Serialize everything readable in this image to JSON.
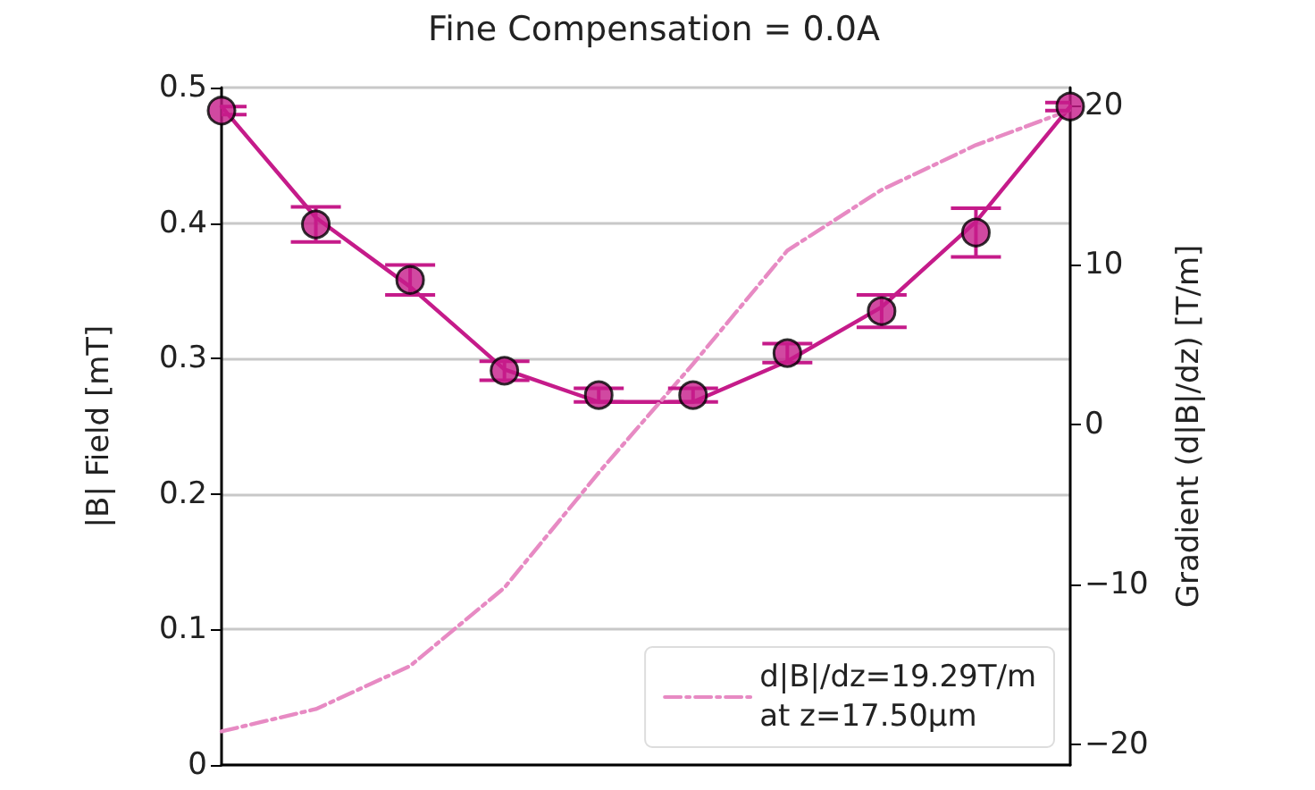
{
  "chart_data": {
    "type": "scatter",
    "title": "Fine Compensation = 0.0A",
    "ylabel": "|B| Field [mT]",
    "y2label": "Gradient (d|B|/dz) [T/m]",
    "categories": [
      null,
      null,
      null,
      null,
      null,
      null,
      null,
      null,
      null,
      null
    ],
    "ylim": [
      0,
      0.5
    ],
    "yticks": [
      0,
      0.1,
      0.2,
      0.3,
      0.4,
      0.5
    ],
    "y2lim": [
      -21.3,
      21.1
    ],
    "y2ticks": [
      {
        "value": -20,
        "label": "−20"
      },
      {
        "value": -10,
        "label": "−10"
      },
      0,
      10,
      20
    ],
    "grid": "y",
    "legend": "bottom right",
    "marker": "circle",
    "series": [
      {
        "type": "line",
        "color": "#c51b8a",
        "marker": "none",
        "values": [
          0.486,
          0.404,
          0.353,
          0.292,
          0.268,
          0.268,
          0.298,
          0.338,
          0.401,
          0.486
        ]
      },
      {
        "color": "#c51b8a",
        "values": [
          0.483,
          0.399,
          0.358,
          0.291,
          0.273,
          0.273,
          0.304,
          0.335,
          0.393,
          0.486
        ],
        "errors": [
          0.003,
          0.013,
          0.011,
          0.007,
          0.005,
          0.005,
          0.007,
          0.012,
          0.018,
          0.003
        ]
      },
      {
        "type": "line",
        "axis": "y2",
        "name": "d|B|/dz=19.29T/m\nat z=17.50μm",
        "color": "#e78ac3",
        "marker": "none",
        "line_style": "dashed",
        "values": [
          -19.2,
          -17.8,
          -15.1,
          -10.2,
          -3.0,
          3.8,
          10.9,
          14.7,
          17.5,
          19.7
        ]
      }
    ]
  }
}
